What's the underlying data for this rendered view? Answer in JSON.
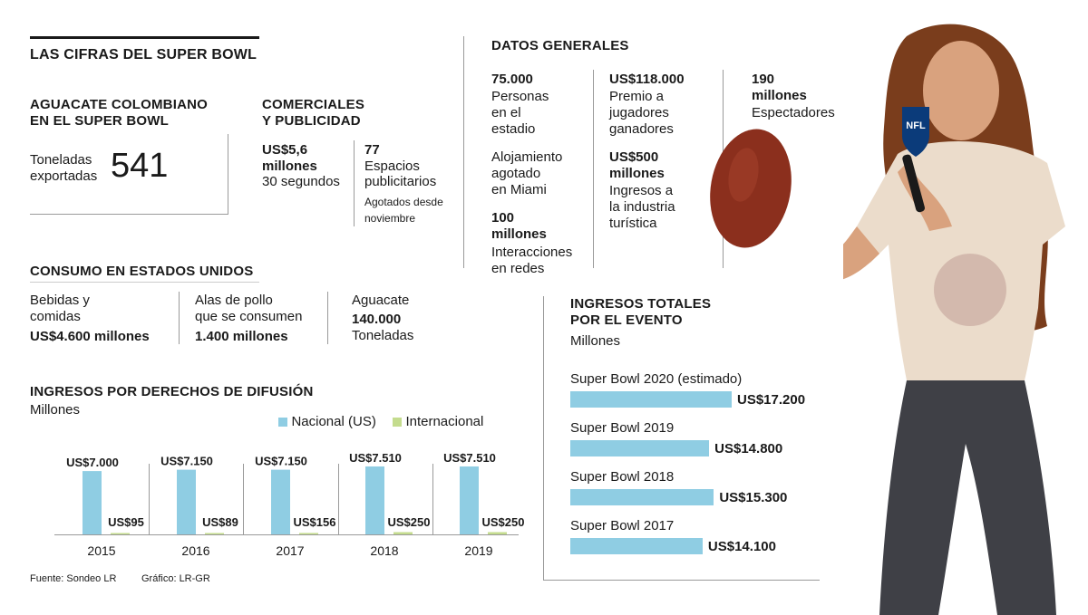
{
  "title": "LAS CIFRAS DEL SUPER BOWL",
  "aguacate": {
    "heading_l1": "AGUACATE COLOMBIANO",
    "heading_l2": "EN EL SUPER BOWL",
    "label_l1": "Toneladas",
    "label_l2": "exportadas",
    "value": "541"
  },
  "comerciales": {
    "heading_l1": "COMERCIALES",
    "heading_l2": "Y PUBLICIDAD",
    "price_l1": "US$5,6",
    "price_l2": "millones",
    "price_sub": "30 segundos",
    "count": "77",
    "count_l1": "Espacios",
    "count_l2": "publicitarios",
    "sold_l1": "Agotados desde",
    "sold_l2": "noviembre"
  },
  "consumo": {
    "heading": "CONSUMO EN ESTADOS UNIDOS",
    "c1_l1": "Bebidas y",
    "c1_l2": "comidas",
    "c1_value": "US$4.600 millones",
    "c2_l1": "Alas de pollo",
    "c2_l2": "que se consumen",
    "c2_value": "1.400 millones",
    "c3_l1": "Aguacate",
    "c3_value": "140.000",
    "c3_unit": "Toneladas"
  },
  "datos": {
    "heading": "DATOS GENERALES",
    "a_value": "75.000",
    "a_l1": "Personas",
    "a_l2": "en el",
    "a_l3": "estadio",
    "b_l1": "Alojamiento",
    "b_l2": "agotado",
    "b_l3": "en Miami",
    "c_v1": "100",
    "c_v2": "millones",
    "c_l1": "Interacciones",
    "c_l2": "en redes",
    "d_value": "US$118.000",
    "d_l1": "Premio a",
    "d_l2": "jugadores",
    "d_l3": "ganadores",
    "e_v1": "US$500",
    "e_v2": "millones",
    "e_l1": "Ingresos a",
    "e_l2": "la industria",
    "e_l3": "turística",
    "f_v1": "190",
    "f_v2": "millones",
    "f_l1": "Espectadores"
  },
  "difusion": {
    "heading": "INGRESOS POR DERECHOS DE DIFUSIÓN",
    "unit": "Millones",
    "source": "Fuente: Sondeo LR",
    "graphic": "Gráfico: LR-GR"
  },
  "ingresos": {
    "heading_l1": "INGRESOS TOTALES",
    "heading_l2": "POR EL EVENTO",
    "unit": "Millones"
  },
  "colors": {
    "nacional": "#8fcde3",
    "internacional": "#c4dc8e",
    "rule": "#9a9a9a"
  },
  "chart_data": [
    {
      "type": "bar",
      "title": "INGRESOS POR DERECHOS DE DIFUSIÓN",
      "ylabel": "Millones",
      "categories": [
        "2015",
        "2016",
        "2017",
        "2018",
        "2019"
      ],
      "ylim": [
        0,
        7510
      ],
      "series": [
        {
          "name": "Nacional (US)",
          "values": [
            7000,
            7150,
            7150,
            7510,
            7510
          ],
          "labels": [
            "US$7.000",
            "US$7.150",
            "US$7.150",
            "US$7.510",
            "US$7.510"
          ]
        },
        {
          "name": "Internacional",
          "values": [
            95,
            89,
            156,
            250,
            250
          ],
          "labels": [
            "US$95",
            "US$89",
            "US$156",
            "US$250",
            "US$250"
          ]
        }
      ]
    },
    {
      "type": "bar",
      "orientation": "horizontal",
      "title": "INGRESOS TOTALES POR EL EVENTO",
      "xlabel": "Millones",
      "categories": [
        "Super Bowl 2020 (estimado)",
        "Super Bowl 2019",
        "Super Bowl 2018",
        "Super Bowl 2017"
      ],
      "values": [
        17200,
        14800,
        15300,
        14100
      ],
      "labels": [
        "US$17.200",
        "US$14.800",
        "US$15.300",
        "US$14.100"
      ]
    }
  ]
}
